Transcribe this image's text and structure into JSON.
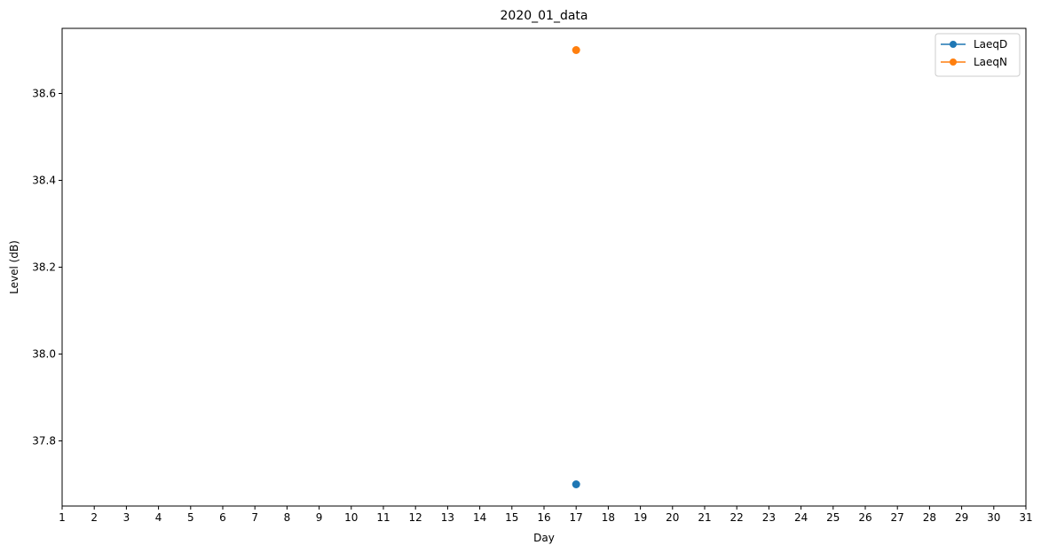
{
  "chart_data": {
    "type": "scatter",
    "title": "2020_01_data",
    "xlabel": "Day",
    "ylabel": "Level (dB)",
    "xlim": [
      1,
      31
    ],
    "ylim": [
      37.65,
      38.75
    ],
    "xticks": [
      1,
      2,
      3,
      4,
      5,
      6,
      7,
      8,
      9,
      10,
      11,
      12,
      13,
      14,
      15,
      16,
      17,
      18,
      19,
      20,
      21,
      22,
      23,
      24,
      25,
      26,
      27,
      28,
      29,
      30,
      31
    ],
    "yticks": [
      37.8,
      38.0,
      38.2,
      38.4,
      38.6
    ],
    "grid": false,
    "legend_position": "top-right",
    "series": [
      {
        "name": "LaeqD",
        "color": "#1f77b4",
        "x": [
          17
        ],
        "y": [
          37.7
        ]
      },
      {
        "name": "LaeqN",
        "color": "#ff7f0e",
        "x": [
          17
        ],
        "y": [
          38.7
        ]
      }
    ]
  }
}
